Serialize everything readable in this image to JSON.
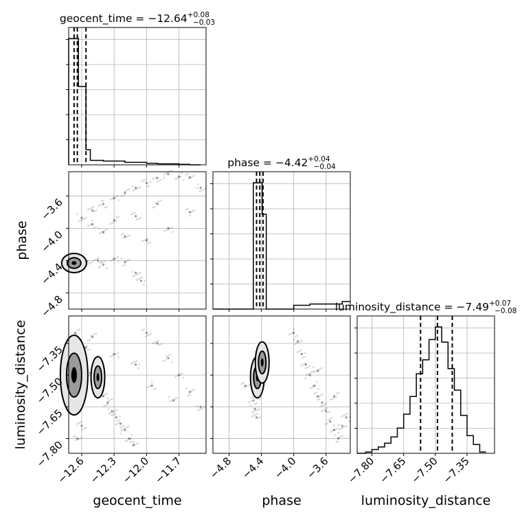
{
  "chart_data": {
    "type": "corner",
    "parameters": [
      "geocent_time",
      "phase",
      "luminosity_distance"
    ],
    "titles": [
      {
        "name": "geocent_time",
        "median": "−12.64",
        "plus": "+0.08",
        "minus": "−0.03"
      },
      {
        "name": "phase",
        "median": "−4.42",
        "plus": "+0.04",
        "minus": "−0.04"
      },
      {
        "name": "luminosity_distance",
        "median": "−7.49",
        "plus": "+0.07",
        "minus": "−0.08"
      }
    ],
    "axes": {
      "geocent_time": {
        "range": [
          -12.72,
          -11.45
        ],
        "ticks": [
          -12.6,
          -12.3,
          -12.0,
          -11.7
        ],
        "tick_labels": [
          "−12.6",
          "−12.3",
          "−12.0",
          "−11.7"
        ]
      },
      "phase": {
        "range": [
          -5.0,
          -3.3
        ],
        "ticks": [
          -4.8,
          -4.4,
          -4.0,
          -3.6
        ],
        "tick_labels": [
          "−4.8",
          "−4.4",
          "−4.0",
          "−3.6"
        ]
      },
      "luminosity_distance": {
        "range": [
          -7.87,
          -7.22
        ],
        "ticks": [
          -7.8,
          -7.65,
          -7.5,
          -7.35
        ],
        "tick_labels": [
          "−7.80",
          "−7.65",
          "−7.50",
          "−7.35"
        ]
      }
    },
    "quantiles": {
      "geocent_time": [
        -12.67,
        -12.64,
        -12.56
      ],
      "phase": [
        -4.46,
        -4.42,
        -4.38
      ],
      "luminosity_distance": [
        -7.57,
        -7.49,
        -7.42
      ]
    },
    "histograms": {
      "geocent_time": {
        "edges": [
          -12.72,
          -12.66,
          -12.63,
          -12.56,
          -12.52,
          -12.4,
          -12.2,
          -12.0,
          -11.9,
          -11.7,
          -11.6,
          -11.5
        ],
        "counts": [
          1.0,
          1.0,
          0.62,
          0.12,
          0.035,
          0.03,
          0.02,
          0.012,
          0.008,
          0.004,
          0.0
        ]
      },
      "phase": {
        "edges": [
          -5.0,
          -4.8,
          -4.6,
          -4.5,
          -4.45,
          -4.39,
          -4.34,
          -4.2,
          -4.0,
          -3.8,
          -3.6,
          -3.5,
          -3.4,
          -3.3
        ],
        "counts": [
          0.0,
          0.0,
          0.0,
          1.0,
          1.0,
          0.75,
          0.0,
          0.0,
          0.03,
          0.04,
          0.04,
          0.04,
          0.06
        ]
      },
      "luminosity_distance": {
        "edges": [
          -7.87,
          -7.83,
          -7.8,
          -7.77,
          -7.74,
          -7.71,
          -7.68,
          -7.65,
          -7.62,
          -7.59,
          -7.56,
          -7.53,
          -7.5,
          -7.47,
          -7.44,
          -7.41,
          -7.38,
          -7.35,
          -7.32,
          -7.29,
          -7.26
        ],
        "counts": [
          0.0,
          0.01,
          0.03,
          0.05,
          0.08,
          0.13,
          0.2,
          0.31,
          0.45,
          0.63,
          0.74,
          0.9,
          1.0,
          0.88,
          0.67,
          0.5,
          0.3,
          0.14,
          0.07,
          0.01
        ]
      }
    },
    "scatter": {
      "phase_vs_geocent_time": [
        [
          -12.6,
          -3.87
        ],
        [
          -12.5,
          -3.78
        ],
        [
          -12.4,
          -3.7
        ],
        [
          -12.3,
          -3.63
        ],
        [
          -12.2,
          -3.56
        ],
        [
          -12.1,
          -3.5
        ],
        [
          -12.0,
          -3.44
        ],
        [
          -11.9,
          -3.38
        ],
        [
          -11.8,
          -3.33
        ],
        [
          -11.7,
          -3.36
        ],
        [
          -11.6,
          -3.37
        ],
        [
          -12.55,
          -4.41
        ],
        [
          -12.45,
          -4.4
        ],
        [
          -12.4,
          -4.45
        ],
        [
          -12.3,
          -4.38
        ],
        [
          -12.2,
          -4.42
        ],
        [
          -12.1,
          -4.55
        ],
        [
          -12.05,
          -4.65
        ],
        [
          -12.5,
          -3.95
        ],
        [
          -12.4,
          -4.05
        ],
        [
          -12.3,
          -3.9
        ],
        [
          -12.2,
          -4.1
        ],
        [
          -12.1,
          -3.85
        ],
        [
          -12.0,
          -4.15
        ],
        [
          -11.9,
          -3.7
        ],
        [
          -11.8,
          -4.0
        ],
        [
          -11.6,
          -3.8
        ],
        [
          -11.5,
          -3.5
        ]
      ],
      "luminosity_distance_vs_geocent_time": [
        [
          -12.52,
          -7.49
        ],
        [
          -12.48,
          -7.53
        ],
        [
          -12.44,
          -7.56
        ],
        [
          -12.4,
          -7.6
        ],
        [
          -12.36,
          -7.63
        ],
        [
          -12.32,
          -7.67
        ],
        [
          -12.28,
          -7.7
        ],
        [
          -12.24,
          -7.73
        ],
        [
          -12.2,
          -7.76
        ],
        [
          -12.16,
          -7.8
        ],
        [
          -12.12,
          -7.83
        ],
        [
          -12.0,
          -7.3
        ],
        [
          -11.9,
          -7.35
        ],
        [
          -11.8,
          -7.42
        ],
        [
          -11.7,
          -7.5
        ],
        [
          -11.6,
          -7.58
        ],
        [
          -11.5,
          -7.65
        ],
        [
          -12.1,
          -7.45
        ],
        [
          -11.95,
          -7.55
        ],
        [
          -11.75,
          -7.62
        ],
        [
          -12.66,
          -7.3
        ],
        [
          -12.64,
          -7.8
        ],
        [
          -12.6,
          -7.74
        ],
        [
          -12.56,
          -7.37
        ],
        [
          -12.5,
          -7.32
        ],
        [
          -12.3,
          -7.4
        ]
      ],
      "luminosity_distance_vs_phase": [
        [
          -4.48,
          -7.66
        ],
        [
          -4.46,
          -7.7
        ],
        [
          -4.5,
          -7.62
        ],
        [
          -4.4,
          -7.36
        ],
        [
          -4.42,
          -7.42
        ],
        [
          -3.95,
          -7.34
        ],
        [
          -3.9,
          -7.4
        ],
        [
          -3.85,
          -7.45
        ],
        [
          -3.8,
          -7.5
        ],
        [
          -3.75,
          -7.55
        ],
        [
          -3.7,
          -7.6
        ],
        [
          -3.65,
          -7.63
        ],
        [
          -3.6,
          -7.67
        ],
        [
          -3.55,
          -7.72
        ],
        [
          -3.5,
          -7.76
        ],
        [
          -3.45,
          -7.8
        ],
        [
          -3.4,
          -7.74
        ],
        [
          -3.35,
          -7.7
        ],
        [
          -4.0,
          -7.3
        ],
        [
          -3.7,
          -7.48
        ],
        [
          -3.5,
          -7.6
        ],
        [
          -4.6,
          -7.55
        ]
      ]
    },
    "density_peaks": {
      "phase_vs_geocent_time": [
        [
          -12.67,
          -4.43
        ]
      ],
      "luminosity_distance_vs_geocent_time": [
        [
          -12.67,
          -7.5
        ],
        [
          -12.45,
          -7.51
        ]
      ],
      "luminosity_distance_vs_phase": [
        [
          -4.45,
          -7.51
        ],
        [
          -4.39,
          -7.44
        ]
      ]
    },
    "grid": true
  }
}
